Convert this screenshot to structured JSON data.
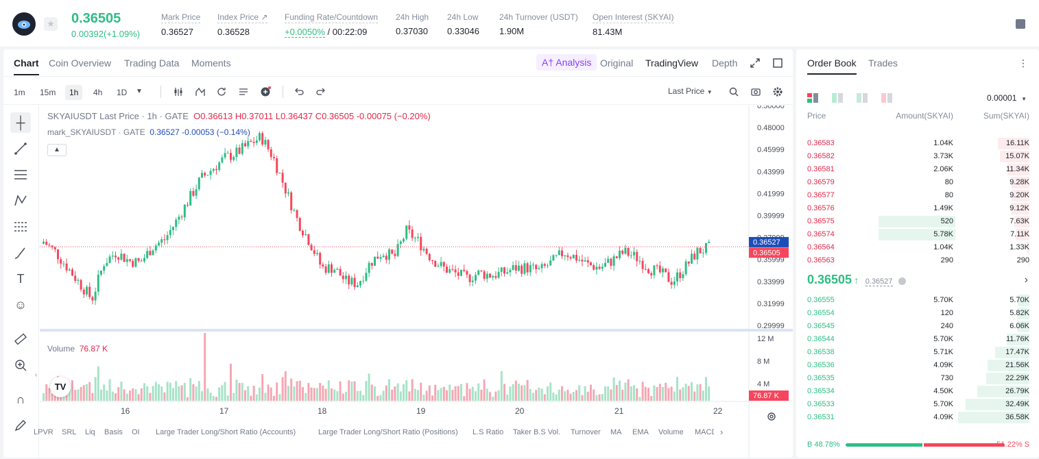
{
  "ticker": {
    "last_price": "0.36505",
    "change": "0.00392(+1.09%)",
    "stats": [
      {
        "label": "Mark Price",
        "value": "0.36527"
      },
      {
        "label": "Index Price ↗",
        "value": "0.36528"
      },
      {
        "label": "Funding Rate/Countdown",
        "value_green": "+0.0050%",
        "value": " / 00:22:09"
      },
      {
        "label": "24h High",
        "value": "0.37030"
      },
      {
        "label": "24h Low",
        "value": "0.33046"
      },
      {
        "label": "24h Turnover (USDT)",
        "value": "1.90M"
      },
      {
        "label": "Open Interest (SKYAI)",
        "value": "81.43M"
      }
    ]
  },
  "chart_tabs": [
    "Chart",
    "Coin Overview",
    "Trading Data",
    "Moments"
  ],
  "view_tabs": {
    "ai": "A† Analysis",
    "original": "Original",
    "tradingview": "TradingView",
    "depth": "Depth"
  },
  "timeframes": [
    "1m",
    "15m",
    "1h",
    "4h",
    "1D"
  ],
  "active_timeframe": "1h",
  "price_source": "Last Price",
  "legend": {
    "symbol": "SKYAIUSDT Last Price · 1h · GATE",
    "ohlc": "O0.36613  H0.37011  L0.36437  C0.36505  -0.00075 (−0.20%)",
    "mark_label": "mark_SKYAIUSDT · GATE",
    "mark_values": "0.36527  -0.00053 (−0.14%)"
  },
  "volume_legend": {
    "label": "Volume",
    "value": "76.87 K"
  },
  "bottom_indicators": [
    "LPVR",
    "SRL",
    "Liq",
    "Basis",
    "OI",
    "Large Trader Long/Short Ratio (Accounts)",
    "Large Trader Long/Short Ratio (Positions)",
    "L.S Ratio",
    "Taker B.S Vol.",
    "Turnover",
    "MA",
    "EMA",
    "Volume",
    "MACD"
  ],
  "chart_data": {
    "type": "candlestick",
    "price_axis_ticks": [
      "0.50000",
      "0.48000",
      "0.45999",
      "0.43999",
      "0.41999",
      "0.39999",
      "0.37999",
      "0.35999",
      "0.33999",
      "0.31999",
      "0.29999"
    ],
    "volume_axis_ticks": [
      "12 M",
      "8 M",
      "4 M"
    ],
    "x_ticks": [
      "16",
      "17",
      "18",
      "19",
      "20",
      "21",
      "22"
    ],
    "mark_price_tag": "0.36527",
    "last_price_tag": "0.36505",
    "volume_tag": "76.87 K",
    "ylim": [
      0.29,
      0.5
    ],
    "colors": {
      "up": "#2ebd85",
      "down": "#f6465d",
      "mark": "#1e4db7"
    }
  },
  "orderbook": {
    "tabs": [
      "Order Book",
      "Trades"
    ],
    "precision": "0.00001",
    "headers": [
      "Price",
      "Amount(SKYAI)",
      "Sum(SKYAI)"
    ],
    "asks": [
      {
        "price": "0.36583",
        "amount": "1.04K",
        "sum": "16.11K",
        "depth": 0.44
      },
      {
        "price": "0.36582",
        "amount": "3.73K",
        "sum": "15.07K",
        "depth": 0.41
      },
      {
        "price": "0.36581",
        "amount": "2.06K",
        "sum": "11.34K",
        "depth": 0.31
      },
      {
        "price": "0.36579",
        "amount": "80",
        "sum": "9.28K",
        "depth": 0.25
      },
      {
        "price": "0.36577",
        "amount": "80",
        "sum": "9.20K",
        "depth": 0.25
      },
      {
        "price": "0.36576",
        "amount": "1.49K",
        "sum": "9.12K",
        "depth": 0.25
      },
      {
        "price": "0.36575",
        "amount": "520",
        "sum": "7.63K",
        "depth": 0.21
      },
      {
        "price": "0.36574",
        "amount": "5.78K",
        "sum": "7.11K",
        "depth": 0.19
      },
      {
        "price": "0.36564",
        "amount": "1.04K",
        "sum": "1.33K",
        "depth": 0.04
      },
      {
        "price": "0.36563",
        "amount": "290",
        "sum": "290",
        "depth": 0.01
      }
    ],
    "mid_price": "0.36505",
    "mid_arrow": "↑",
    "mark_price": "0.36527",
    "bids": [
      {
        "price": "0.36555",
        "amount": "5.70K",
        "sum": "5.70K",
        "depth": 0.16
      },
      {
        "price": "0.36554",
        "amount": "120",
        "sum": "5.82K",
        "depth": 0.16
      },
      {
        "price": "0.36545",
        "amount": "240",
        "sum": "6.06K",
        "depth": 0.17
      },
      {
        "price": "0.36544",
        "amount": "5.70K",
        "sum": "11.76K",
        "depth": 0.32
      },
      {
        "price": "0.36538",
        "amount": "5.71K",
        "sum": "17.47K",
        "depth": 0.48
      },
      {
        "price": "0.36536",
        "amount": "4.09K",
        "sum": "21.56K",
        "depth": 0.59
      },
      {
        "price": "0.36535",
        "amount": "730",
        "sum": "22.29K",
        "depth": 0.61
      },
      {
        "price": "0.36534",
        "amount": "4.50K",
        "sum": "26.79K",
        "depth": 0.73
      },
      {
        "price": "0.36533",
        "amount": "5.70K",
        "sum": "32.49K",
        "depth": 0.89
      },
      {
        "price": "0.36531",
        "amount": "4.09K",
        "sum": "36.58K",
        "depth": 1.0
      }
    ],
    "buy_ratio": "B 48.78%",
    "sell_ratio": "51.22% S",
    "buy_fraction": 0.4878
  }
}
